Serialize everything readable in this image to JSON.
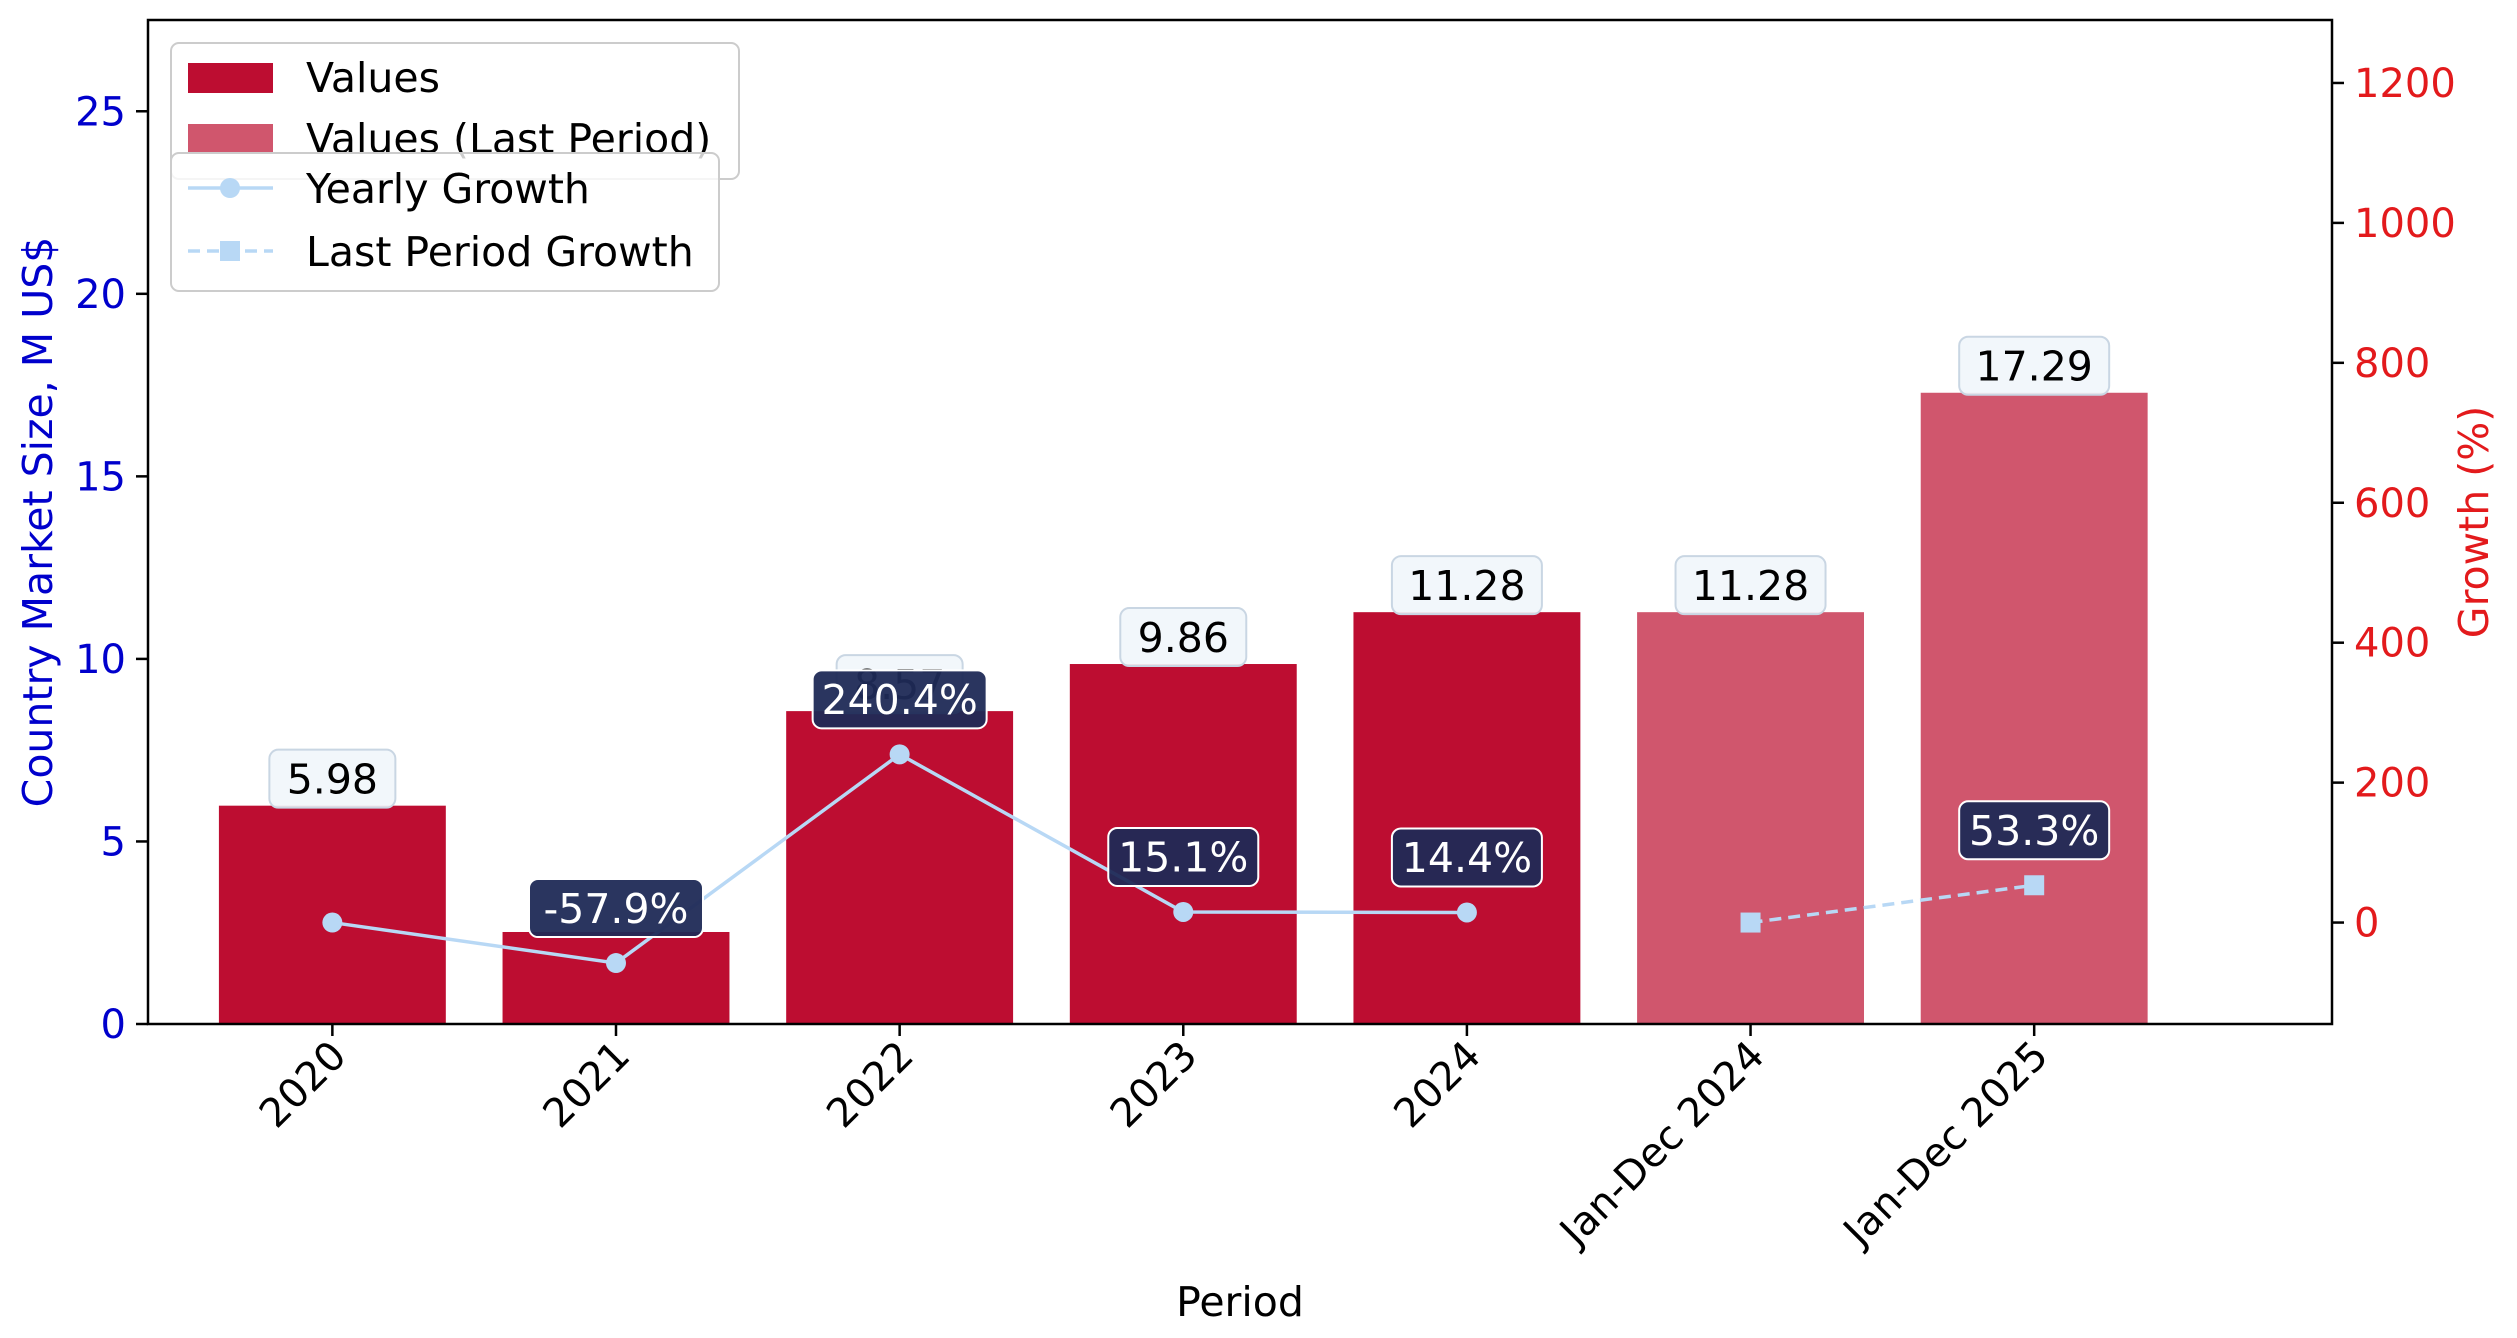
{
  "chart_data": {
    "type": "bar",
    "title": "",
    "xlabel": "Period",
    "ylabel": "Country Market Size, M US$",
    "y2label": "Growth (%)",
    "categories": [
      "2020",
      "2021",
      "2022",
      "2023",
      "2024",
      "Jan-Dec 2024",
      "Jan-Dec 2025"
    ],
    "ylim": [
      0,
      27.5
    ],
    "yticks": [
      0,
      5,
      10,
      15,
      20,
      25
    ],
    "y2lim": [
      -145,
      1290
    ],
    "y2ticks": [
      0,
      200,
      400,
      600,
      800,
      1000,
      1200
    ],
    "grid": false,
    "legend_position": "top-left",
    "series": [
      {
        "name": "Values",
        "kind": "bar",
        "color": "#bd0d31",
        "values": [
          5.98,
          2.52,
          8.57,
          9.86,
          11.28,
          null,
          null
        ],
        "labels": [
          "5.98",
          "",
          "8.57",
          "9.86",
          "11.28",
          "",
          ""
        ]
      },
      {
        "name": "Values (Last Period)",
        "kind": "bar",
        "color": "#d0566d",
        "values": [
          null,
          null,
          null,
          null,
          null,
          11.28,
          17.29
        ],
        "labels": [
          "",
          "",
          "",
          "",
          "",
          "11.28",
          "17.29"
        ]
      },
      {
        "name": "Yearly Growth",
        "kind": "line",
        "axis": "right",
        "color": "#b8d8f5",
        "marker": "circle",
        "values": [
          0,
          -57.9,
          240.4,
          15.1,
          14.4,
          null,
          null
        ],
        "labels": [
          "",
          "-57.9%",
          "240.4%",
          "15.1%",
          "14.4%",
          "",
          ""
        ]
      },
      {
        "name": "Last Period Growth",
        "kind": "line",
        "axis": "right",
        "color": "#b8d8f5",
        "marker": "square",
        "dashed": true,
        "values": [
          null,
          null,
          null,
          null,
          null,
          0,
          53.3
        ],
        "labels": [
          "",
          "",
          "",
          "",
          "",
          "",
          "53.3%"
        ]
      }
    ],
    "colors": {
      "left_axis": "#0000cc",
      "right_axis": "#e31a1c",
      "growth_label_bg": "#1f2a56",
      "value_label_bg": "#f1f6fb"
    }
  }
}
